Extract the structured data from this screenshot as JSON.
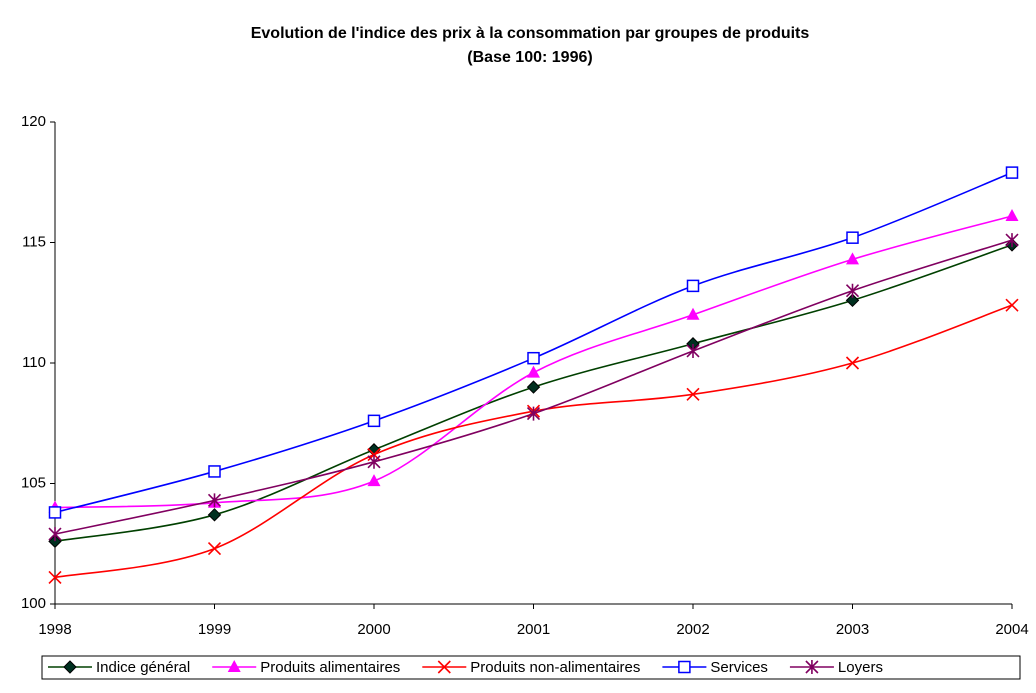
{
  "chart_data": {
    "type": "line",
    "title": "Evolution de l'indice des prix à la consommation par groupes de produits",
    "subtitle": "(Base 100: 1996)",
    "x": [
      1998,
      1999,
      2000,
      2001,
      2002,
      2003,
      2004
    ],
    "xlim": [
      1998,
      2004
    ],
    "xticks": [
      1998,
      1999,
      2000,
      2001,
      2002,
      2003,
      2004
    ],
    "ylim": [
      100,
      120
    ],
    "yticks": [
      100,
      105,
      110,
      115,
      120
    ],
    "legend": "bottom",
    "series": [
      {
        "name": "Indice général",
        "color": "#004000",
        "marker": "diamond",
        "values": [
          102.6,
          103.7,
          106.4,
          109.0,
          110.8,
          112.6,
          114.9
        ]
      },
      {
        "name": "Produits alimentaires",
        "color": "#ff00ff",
        "marker": "triangle",
        "values": [
          104.0,
          104.2,
          105.1,
          109.6,
          112.0,
          114.3,
          116.1
        ]
      },
      {
        "name": "Produits non-alimentaires",
        "color": "#ff0000",
        "marker": "x",
        "values": [
          101.1,
          102.3,
          106.2,
          108.0,
          108.7,
          110.0,
          112.4
        ]
      },
      {
        "name": "Services",
        "color": "#0000ff",
        "marker": "square",
        "values": [
          103.8,
          105.5,
          107.6,
          110.2,
          113.2,
          115.2,
          117.9
        ]
      },
      {
        "name": "Loyers",
        "color": "#800060",
        "marker": "star",
        "values": [
          102.9,
          104.3,
          105.9,
          107.9,
          110.5,
          113.0,
          115.1
        ]
      }
    ]
  }
}
